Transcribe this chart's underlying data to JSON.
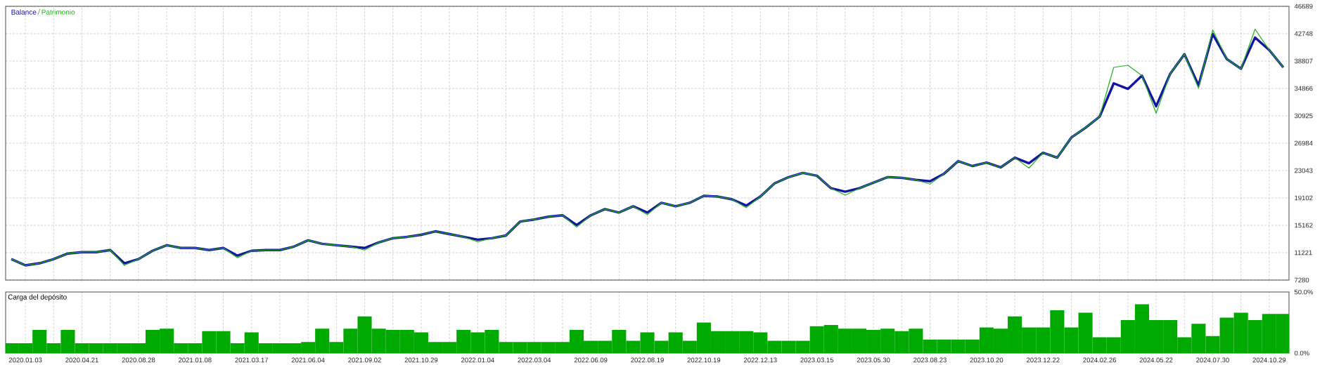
{
  "chart_data": [
    {
      "type": "line",
      "grid": true,
      "tick_labels": "y",
      "categories": [
        null,
        "2020.01.03",
        null,
        null,
        null,
        "2020.04.21",
        null,
        null,
        null,
        "2020.08.28",
        null,
        null,
        null,
        "2021.01.08",
        null,
        null,
        null,
        "2021.03.17",
        null,
        null,
        null,
        "2021.06.04",
        null,
        null,
        null,
        "2021.09.02",
        null,
        null,
        null,
        "2021.10.29",
        null,
        null,
        null,
        "2022.01.04",
        null,
        null,
        null,
        "2022.03.04",
        null,
        null,
        null,
        "2022.06.09",
        null,
        null,
        null,
        "2022.08.19",
        null,
        null,
        null,
        "2022.10.19",
        null,
        null,
        null,
        "2022.12.13",
        null,
        null,
        null,
        "2023.03.15",
        null,
        null,
        null,
        "2023.05.30",
        null,
        null,
        null,
        "2023.08.23",
        null,
        null,
        null,
        "2023.10.20",
        null,
        null,
        null,
        "2023.12.22",
        null,
        null,
        null,
        "2024.02.26",
        null,
        null,
        null,
        "2024.05.22",
        null,
        null,
        null,
        "2024.07.30",
        null,
        null,
        null,
        "2024.10.29",
        null
      ],
      "series": [
        {
          "name": "Balance",
          "color": "#1414a0",
          "values": [
            10300,
            9400,
            9700,
            10300,
            11100,
            11300,
            11300,
            11600,
            9700,
            10300,
            11500,
            12300,
            11900,
            11900,
            11600,
            11900,
            10800,
            11500,
            11600,
            11600,
            12100,
            13000,
            12500,
            12300,
            12100,
            11900,
            12700,
            13300,
            13500,
            13800,
            14300,
            13900,
            13500,
            13100,
            13300,
            13700,
            15700,
            16000,
            16400,
            16600,
            15200,
            16600,
            17500,
            17000,
            17900,
            17000,
            18400,
            17900,
            18400,
            19400,
            19300,
            18900,
            18000,
            19300,
            21200,
            22100,
            22700,
            22300,
            20500,
            20000,
            20500,
            21300,
            22100,
            22000,
            21700,
            21500,
            22600,
            24400,
            23700,
            24200,
            23500,
            24900,
            24100,
            25600,
            24900,
            27800,
            29200,
            30800,
            35600,
            34800,
            36700,
            32300,
            37000,
            39800,
            35300,
            42700,
            39100,
            37700,
            42200,
            40400,
            37900
          ]
        },
        {
          "name": "Patrimonio",
          "color": "#1eb41e",
          "values": [
            10300,
            9400,
            9700,
            10300,
            11100,
            11300,
            11300,
            11600,
            9400,
            10300,
            11500,
            12300,
            11900,
            11900,
            11600,
            11900,
            10500,
            11500,
            11600,
            11600,
            12100,
            13000,
            12500,
            12300,
            12100,
            11600,
            12700,
            13300,
            13500,
            13800,
            14300,
            13900,
            13500,
            12800,
            13300,
            13700,
            15700,
            16000,
            16400,
            16600,
            14900,
            16600,
            17500,
            17000,
            17900,
            16700,
            18400,
            17900,
            18400,
            19400,
            19300,
            18900,
            17700,
            19300,
            21200,
            22100,
            22700,
            22300,
            20500,
            19500,
            20500,
            21300,
            22100,
            22000,
            21700,
            21100,
            22600,
            24400,
            23700,
            24200,
            23500,
            24900,
            23400,
            25600,
            24900,
            27800,
            29200,
            30800,
            37900,
            38200,
            36700,
            31300,
            37000,
            39800,
            34900,
            43300,
            39100,
            37700,
            43400,
            40400,
            37900
          ]
        }
      ],
      "ylim": [
        7280,
        46689
      ],
      "yticks": [
        7280,
        11221,
        15162,
        19102,
        23043,
        26984,
        30925,
        34866,
        38807,
        42748,
        46689
      ]
    },
    {
      "type": "bar",
      "title": "Carga del depósito",
      "grid": "x",
      "color": "#00aa00",
      "categories": [
        null,
        "2020.01.03",
        null,
        null,
        null,
        "2020.04.21",
        null,
        null,
        null,
        "2020.08.28",
        null,
        null,
        null,
        "2021.01.08",
        null,
        null,
        null,
        "2021.03.17",
        null,
        null,
        null,
        "2021.06.04",
        null,
        null,
        null,
        "2021.09.02",
        null,
        null,
        null,
        "2021.10.29",
        null,
        null,
        null,
        "2022.01.04",
        null,
        null,
        null,
        "2022.03.04",
        null,
        null,
        null,
        "2022.06.09",
        null,
        null,
        null,
        "2022.08.19",
        null,
        null,
        null,
        "2022.10.19",
        null,
        null,
        null,
        "2022.12.13",
        null,
        null,
        null,
        "2023.03.15",
        null,
        null,
        null,
        "2023.05.30",
        null,
        null,
        null,
        "2023.08.23",
        null,
        null,
        null,
        "2023.10.20",
        null,
        null,
        null,
        "2023.12.22",
        null,
        null,
        null,
        "2024.02.26",
        null,
        null,
        null,
        "2024.05.22",
        null,
        null,
        null,
        "2024.07.30",
        null,
        null,
        null,
        "2024.10.29",
        null
      ],
      "values": [
        8,
        8,
        19,
        8,
        19,
        8,
        8,
        8,
        8,
        8,
        19,
        20,
        8,
        8,
        18,
        18,
        8,
        17,
        8,
        8,
        8,
        9,
        20,
        9,
        20,
        30,
        20,
        19,
        19,
        17,
        9,
        9,
        19,
        17,
        19,
        9,
        9,
        9,
        9,
        9,
        19,
        10,
        10,
        19,
        10,
        17,
        10,
        17,
        10,
        25,
        18,
        18,
        18,
        17,
        10,
        10,
        10,
        22,
        23,
        20,
        20,
        19,
        20,
        18,
        20,
        11,
        11,
        11,
        11,
        21,
        20,
        30,
        21,
        21,
        35,
        21,
        33,
        13,
        13,
        27,
        40,
        27,
        27,
        13,
        24,
        14,
        29,
        33,
        27,
        32,
        32
      ],
      "ylim": [
        0,
        50
      ],
      "yticks": [
        {
          "value": 0,
          "label": "0.0%"
        },
        {
          "value": 50,
          "label": "50.0%"
        }
      ]
    }
  ]
}
